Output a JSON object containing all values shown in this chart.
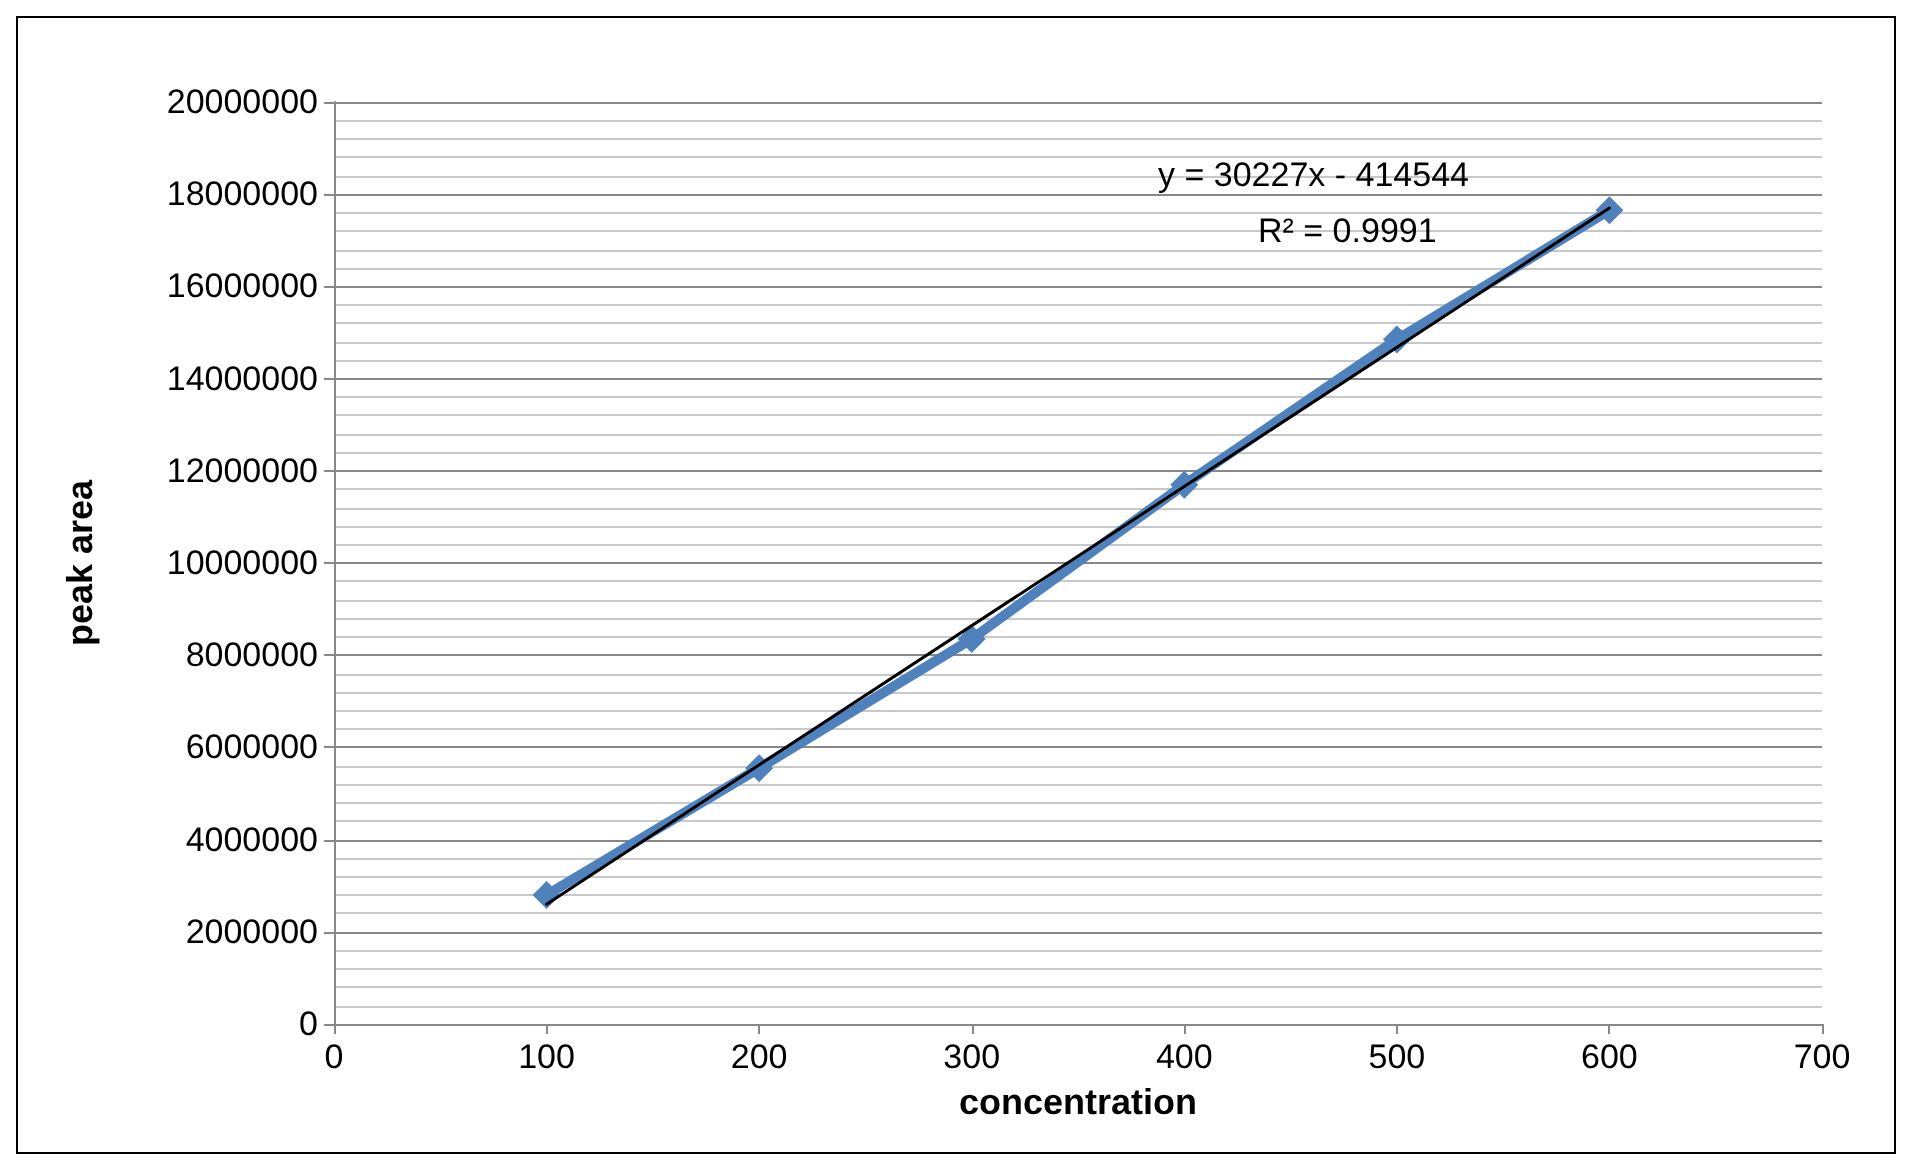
{
  "chart_data": {
    "type": "line",
    "xlabel": "concentration",
    "ylabel": "peak area",
    "xlim": [
      0,
      700
    ],
    "xticks": [
      0,
      100,
      200,
      300,
      400,
      500,
      600,
      700
    ],
    "ylim": [
      0,
      20000000
    ],
    "yticks": [
      0,
      2000000,
      4000000,
      6000000,
      8000000,
      10000000,
      12000000,
      14000000,
      16000000,
      18000000,
      20000000
    ],
    "grid": "y",
    "marker": "diamond",
    "line_style": "solid",
    "series": [
      {
        "color": "#4f81bd",
        "x": [
          100,
          200,
          300,
          400,
          500,
          600
        ],
        "values": [
          2800000,
          5550000,
          8350000,
          11700000,
          14850000,
          17650000
        ]
      },
      {
        "type": "line",
        "color": "#000000",
        "marker": "none",
        "x": [
          100,
          600
        ],
        "values": [
          2600000,
          17700000
        ]
      }
    ],
    "annotations": [
      "y = 30227x - 414544",
      "R² = 0.9991"
    ]
  }
}
